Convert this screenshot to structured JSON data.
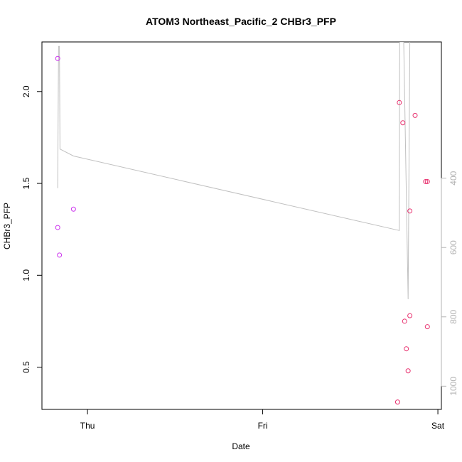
{
  "chart_data": {
    "type": "scatter",
    "title": "ATOM3 Northeast_Pacific_2 CHBr3_PFP",
    "xlabel": "Date",
    "ylabel": "CHBr3_PFP",
    "x_ticks": [
      {
        "label": "Thu",
        "value": 0
      },
      {
        "label": "Fri",
        "value": 1
      },
      {
        "label": "Sat",
        "value": 2
      }
    ],
    "y_ticks": [
      0.5,
      1.0,
      1.5,
      2.0
    ],
    "y_tick_labels": [
      "0.5",
      "1.0",
      "1.5",
      "2.0"
    ],
    "xlim": [
      -0.26,
      2.02
    ],
    "ylim": [
      0.27,
      2.27
    ],
    "y2_ticks": [
      400,
      600,
      800,
      1000
    ],
    "y2_tick_labels": [
      "400",
      "600",
      "800",
      "1000"
    ],
    "y2lim": [
      1067,
      7
    ],
    "grid": false,
    "colors": {
      "series_a": "#cc33ee",
      "series_b": "#e8306e",
      "pressure_line": "#c0c0c0",
      "right_axis": "#b3b3b3"
    },
    "series": [
      {
        "points": [
          {
            "x": -0.17,
            "y": 2.18
          },
          {
            "x": -0.17,
            "y": 1.26
          },
          {
            "x": -0.16,
            "y": 1.11
          },
          {
            "x": -0.08,
            "y": 1.36
          }
        ]
      },
      {
        "points": [
          {
            "x": 1.78,
            "y": 1.94
          },
          {
            "x": 1.8,
            "y": 1.83
          },
          {
            "x": 1.87,
            "y": 1.87
          },
          {
            "x": 1.84,
            "y": 1.35
          },
          {
            "x": 1.93,
            "y": 1.51
          },
          {
            "x": 1.94,
            "y": 1.51
          },
          {
            "x": 1.81,
            "y": 0.75
          },
          {
            "x": 1.84,
            "y": 0.78
          },
          {
            "x": 1.82,
            "y": 0.6
          },
          {
            "x": 1.83,
            "y": 0.48
          },
          {
            "x": 1.94,
            "y": 0.72
          },
          {
            "x": 1.77,
            "y": 0.31
          }
        ]
      }
    ],
    "pressure_line": [
      {
        "x": -0.17,
        "p": 429
      },
      {
        "x": -0.165,
        "p": 20
      },
      {
        "x": -0.16,
        "p": 20
      },
      {
        "x": -0.157,
        "p": 316
      },
      {
        "x": -0.08,
        "p": 336
      },
      {
        "x": 1.78,
        "p": 551
      },
      {
        "x": 1.782,
        "p": 7
      },
      {
        "x": 1.8,
        "p": 7
      },
      {
        "x": 1.805,
        "p": 7
      },
      {
        "x": 1.83,
        "p": 749
      },
      {
        "x": 1.84,
        "p": 7
      }
    ]
  }
}
